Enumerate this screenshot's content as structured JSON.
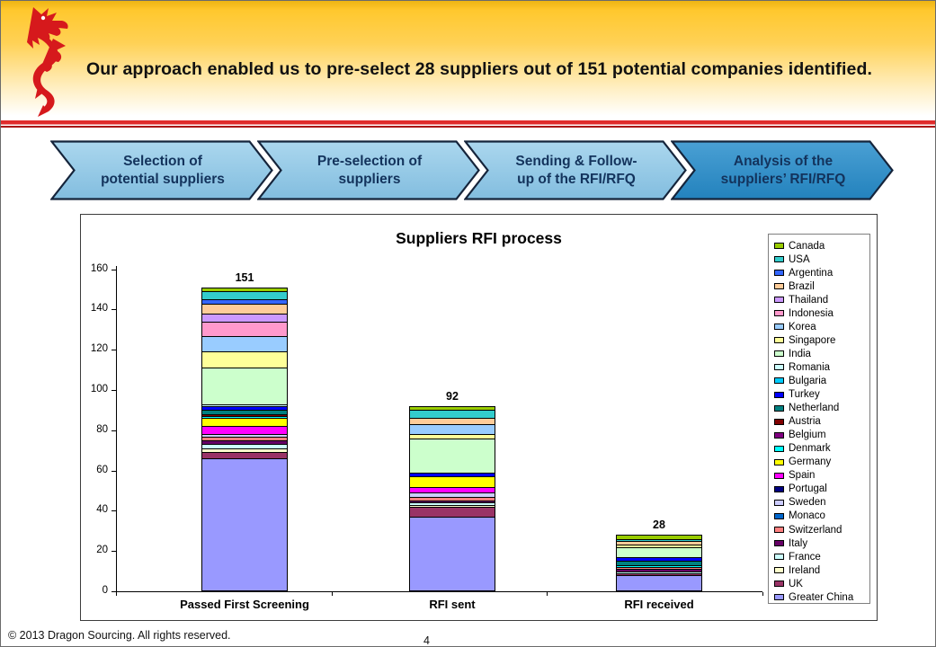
{
  "header": {
    "title": "Our approach enabled us to pre-select 28 suppliers out of 151 potential companies identified."
  },
  "process_steps": [
    {
      "lines": [
        "Selection of",
        "potential suppliers"
      ],
      "highlighted": false
    },
    {
      "lines": [
        "Pre-selection of",
        "suppliers"
      ],
      "highlighted": false
    },
    {
      "lines": [
        "Sending & Follow-",
        "up of the RFI/RFQ"
      ],
      "highlighted": false
    },
    {
      "lines": [
        "Analysis of the",
        "suppliers’ RFI/RFQ"
      ],
      "highlighted": true
    }
  ],
  "colors": {
    "chevron_light_top": "#abd7ee",
    "chevron_light_bottom": "#82bddf",
    "chevron_dark_top": "#4aa0d4",
    "chevron_dark_bottom": "#2382bd",
    "chevron_border": "#15243b",
    "chevron_text": "#13335c",
    "logo_red": "#d6191c",
    "red_rule": "#e02b2b",
    "bar_border": "#000000"
  },
  "chart_data": {
    "type": "bar",
    "stacked": true,
    "title": "Suppliers RFI process",
    "categories": [
      "Passed First Screening",
      "RFI sent",
      "RFI received"
    ],
    "totals": [
      151,
      92,
      28
    ],
    "xlabel": "",
    "ylabel": "",
    "ylim": [
      0,
      160
    ],
    "ytick_step": 20,
    "grid": false,
    "legend_position": "right",
    "stack_order_bottom_to_top": [
      "Greater China",
      "UK",
      "Ireland",
      "France",
      "Italy",
      "Switzerland",
      "Monaco",
      "Sweden",
      "Portugal",
      "Spain",
      "Germany",
      "Denmark",
      "Belgium",
      "Austria",
      "Netherland",
      "Turkey",
      "Bulgaria",
      "Romania",
      "India",
      "Singapore",
      "Korea",
      "Indonesia",
      "Thailand",
      "Brazil",
      "Argentina",
      "USA",
      "Canada"
    ],
    "series": [
      {
        "name": "Canada",
        "color": "#99CC00",
        "values": [
          2,
          2,
          2
        ]
      },
      {
        "name": "USA",
        "color": "#33CCCC",
        "values": [
          4,
          4,
          1
        ]
      },
      {
        "name": "Argentina",
        "color": "#3366FF",
        "values": [
          2,
          0,
          0
        ]
      },
      {
        "name": "Brazil",
        "color": "#FFCC99",
        "values": [
          5,
          3,
          2
        ]
      },
      {
        "name": "Thailand",
        "color": "#CC99FF",
        "values": [
          4,
          0,
          0
        ]
      },
      {
        "name": "Indonesia",
        "color": "#FF99CC",
        "values": [
          7,
          0,
          0
        ]
      },
      {
        "name": "Korea",
        "color": "#99CCFF",
        "values": [
          8,
          5,
          0
        ]
      },
      {
        "name": "Singapore",
        "color": "#FFFF99",
        "values": [
          8,
          2,
          1
        ]
      },
      {
        "name": "India",
        "color": "#CCFFCC",
        "values": [
          18,
          17,
          5
        ]
      },
      {
        "name": "Romania",
        "color": "#CCFFFF",
        "values": [
          1,
          0,
          0
        ]
      },
      {
        "name": "Bulgaria",
        "color": "#00CCFF",
        "values": [
          0,
          0,
          0
        ]
      },
      {
        "name": "Turkey",
        "color": "#0000FF",
        "values": [
          2,
          2,
          2
        ]
      },
      {
        "name": "Netherland",
        "color": "#008080",
        "values": [
          2,
          0,
          2
        ]
      },
      {
        "name": "Austria",
        "color": "#800000",
        "values": [
          1,
          0,
          0
        ]
      },
      {
        "name": "Belgium",
        "color": "#800080",
        "values": [
          0,
          0,
          0
        ]
      },
      {
        "name": "Denmark",
        "color": "#00FFFF",
        "values": [
          1,
          0,
          1
        ]
      },
      {
        "name": "Germany",
        "color": "#FFFF00",
        "values": [
          4,
          5,
          0
        ]
      },
      {
        "name": "Spain",
        "color": "#FF00FF",
        "values": [
          4,
          3,
          0
        ]
      },
      {
        "name": "Portugal",
        "color": "#000080",
        "values": [
          0,
          0,
          0
        ]
      },
      {
        "name": "Sweden",
        "color": "#CCCCFF",
        "values": [
          1,
          2,
          0
        ]
      },
      {
        "name": "Monaco",
        "color": "#0066CC",
        "values": [
          0,
          0,
          0
        ]
      },
      {
        "name": "Switzerland",
        "color": "#FF8080",
        "values": [
          2,
          2,
          1
        ]
      },
      {
        "name": "Italy",
        "color": "#660066",
        "values": [
          2,
          1,
          1
        ]
      },
      {
        "name": "France",
        "color": "#CCFFFF",
        "values": [
          2,
          1,
          1
        ]
      },
      {
        "name": "Ireland",
        "color": "#FFFFCC",
        "values": [
          2,
          1,
          0
        ]
      },
      {
        "name": "UK",
        "color": "#993366",
        "values": [
          3,
          5,
          1
        ]
      },
      {
        "name": "Greater China",
        "color": "#9999FF",
        "values": [
          66,
          37,
          8
        ]
      }
    ]
  },
  "footer": {
    "copyright": "© 2013 Dragon Sourcing. All rights reserved.",
    "page_number": "4"
  }
}
